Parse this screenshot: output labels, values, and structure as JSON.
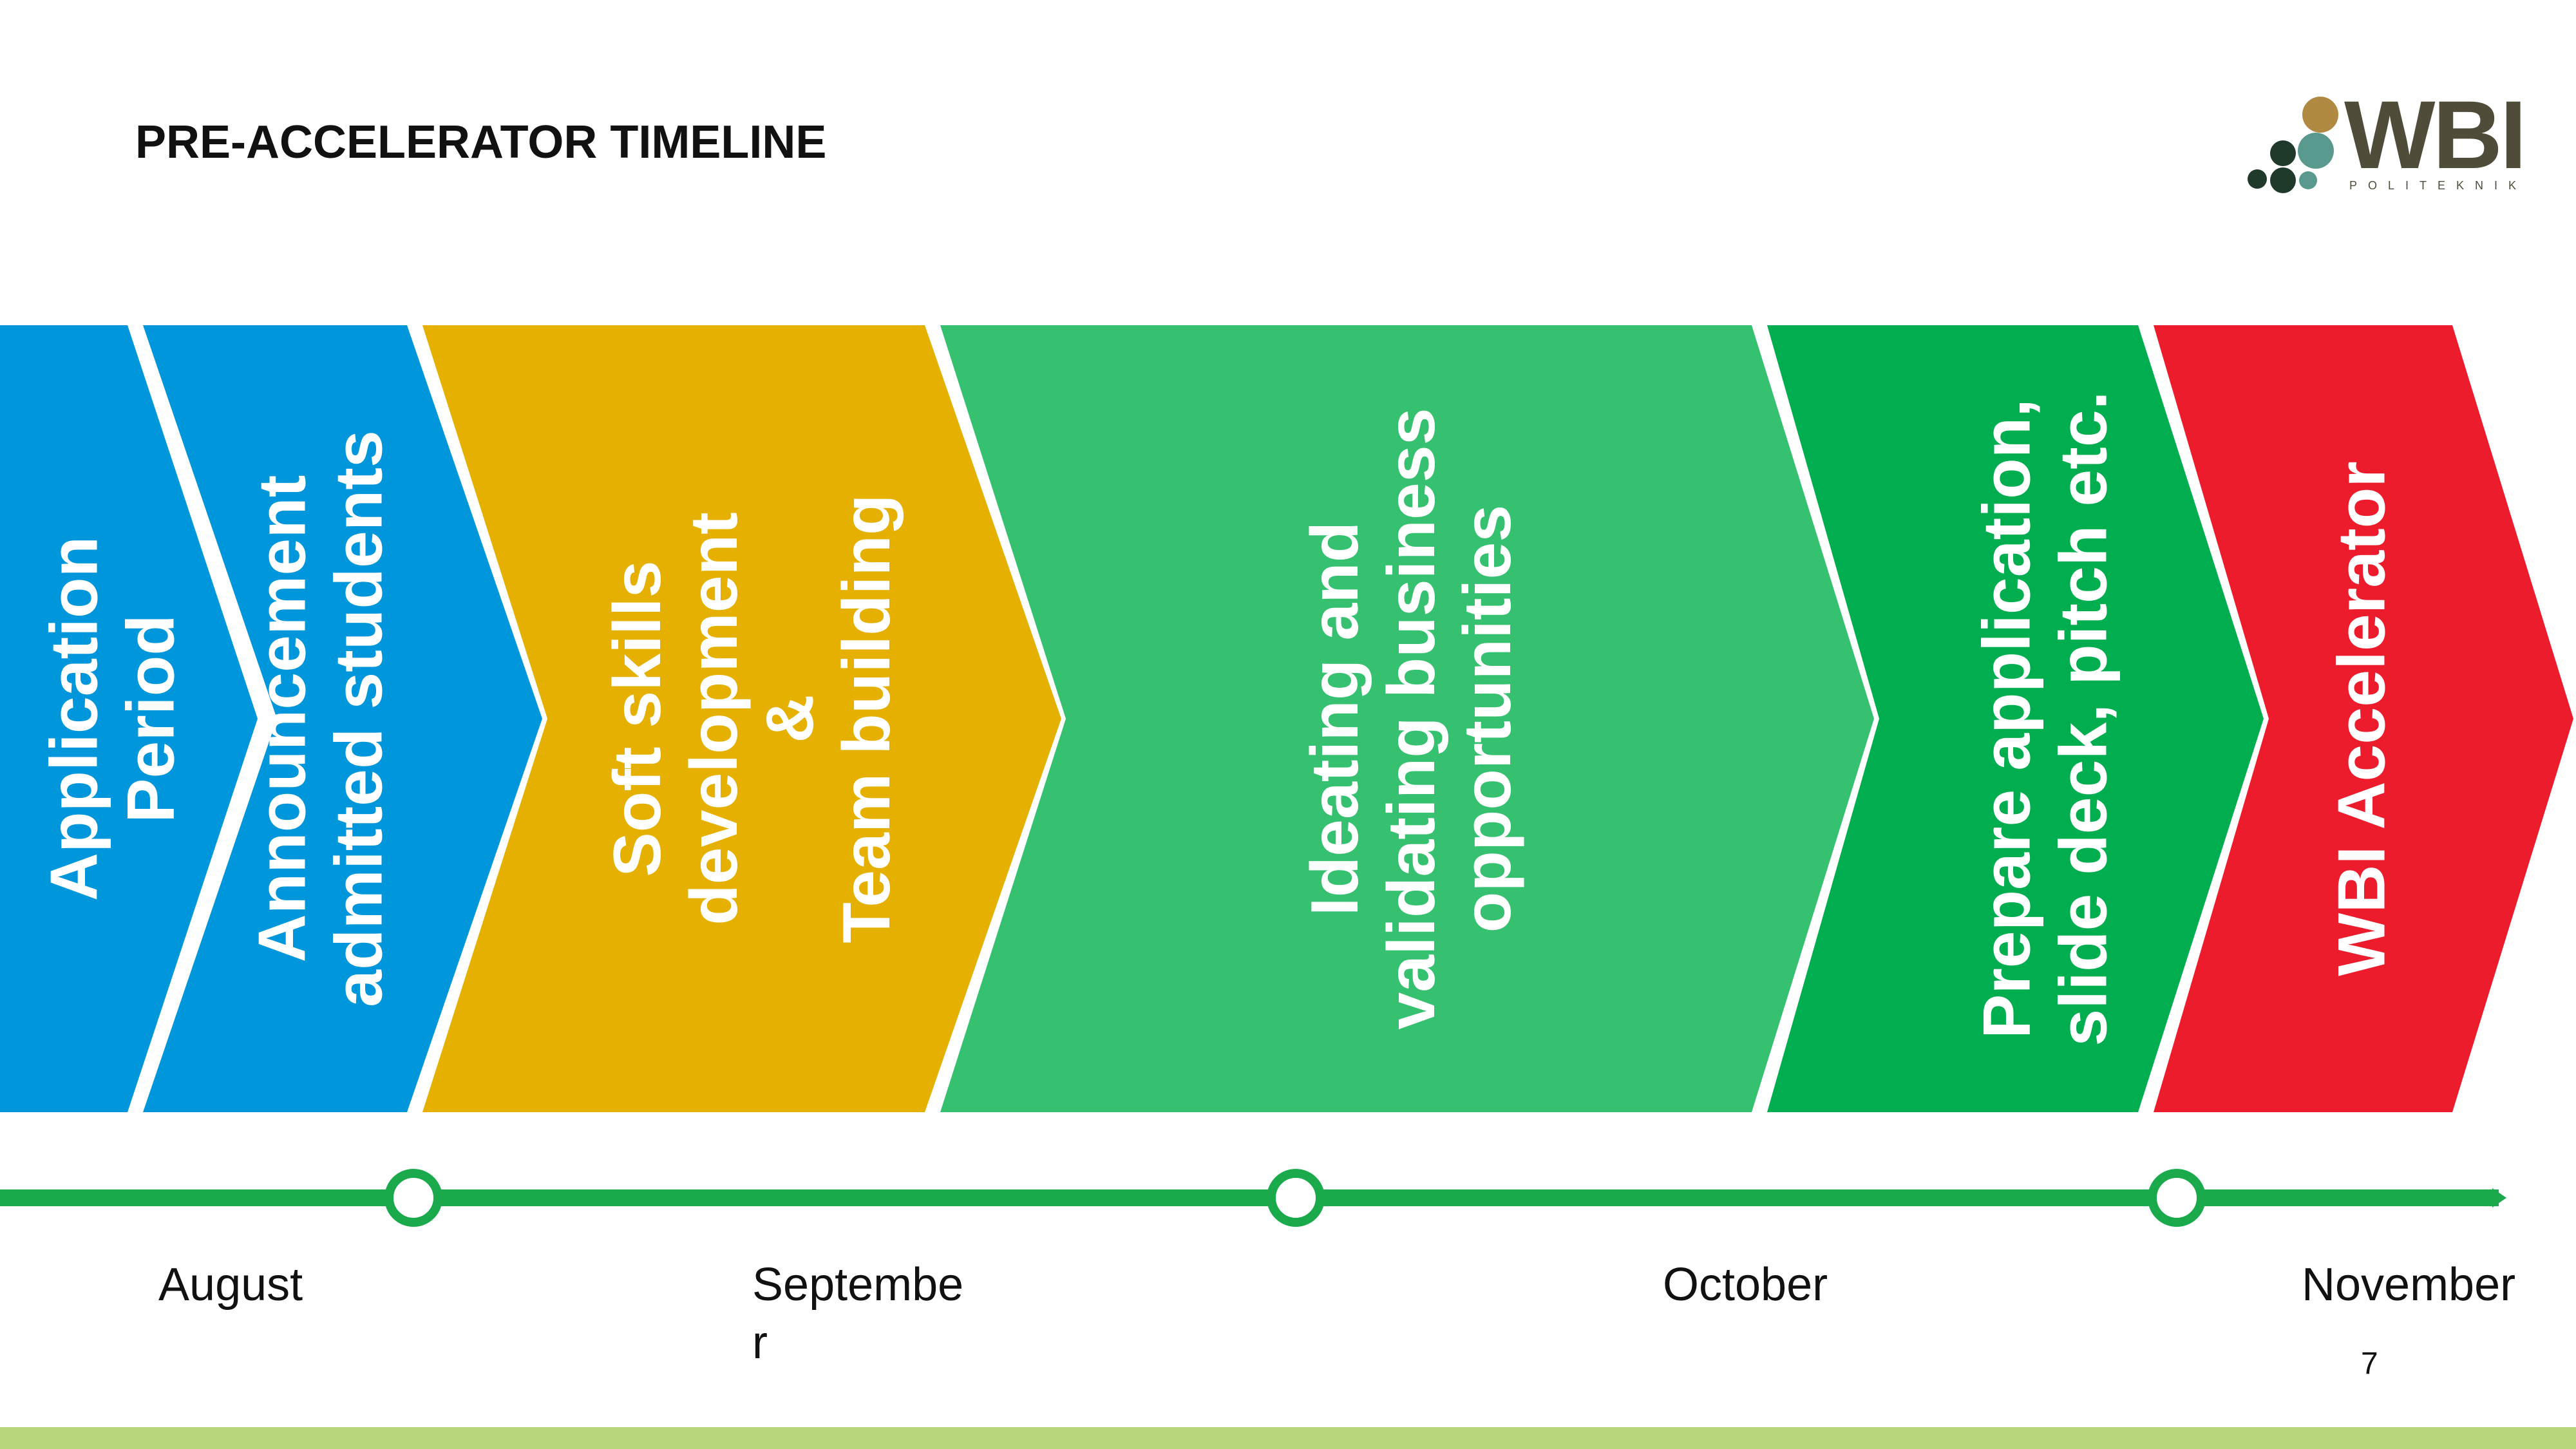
{
  "slide": {
    "title": "PRE-ACCELERATOR TIMELINE",
    "page_number": "7"
  },
  "logo": {
    "text": "WBI",
    "subtext": "POLITEKNIK",
    "colors": {
      "brown": "#b08a43",
      "dark": "#1f3a2a",
      "teal": "#5a9a8e",
      "text": "#4f4d3a"
    }
  },
  "phases": [
    {
      "label": "Application\nPeriod",
      "color": "#0096db"
    },
    {
      "label": "Announcement\nadmitted students",
      "color": "#0096db"
    },
    {
      "label": "Soft skills\ndevelopment\n&\nTeam building",
      "color": "#e6b000"
    },
    {
      "label": "Ideating and\nvalidating  business\nopportunities",
      "color": "#35c170"
    },
    {
      "label": "Prepare application,\nslide deck, pitch etc.",
      "color": "#00ae4f"
    },
    {
      "label": "WBI Accelerator",
      "color": "#ed1c2d"
    }
  ],
  "timeline": {
    "line_color": "#1aaa4b",
    "months": [
      "August",
      "Septembe\nr",
      "October",
      "November"
    ]
  },
  "bottom_band_color": "#b8d67b"
}
